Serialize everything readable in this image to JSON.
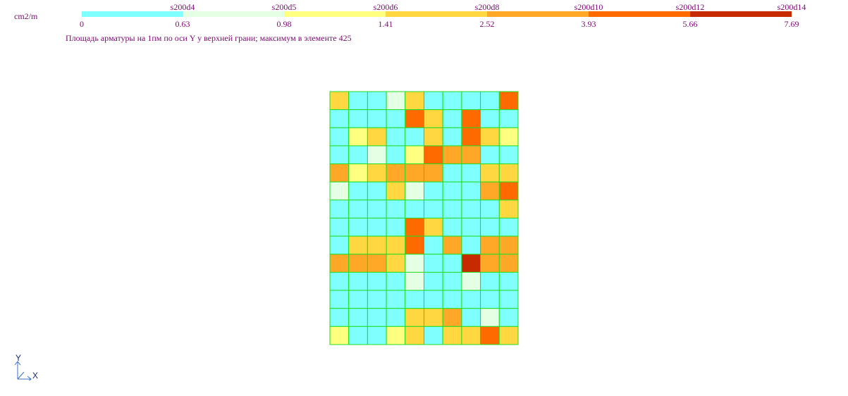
{
  "unit_label": "cm2/m",
  "caption": "Площадь арматуры на 1пм по оси Y у верхней грани; максимум в элементе 425",
  "legend": {
    "ticks": [
      "0",
      "0.63",
      "0.98",
      "1.41",
      "2.52",
      "3.93",
      "5.66",
      "7.69"
    ],
    "reinforcement_labels": [
      "s200d4",
      "s200d5",
      "s200d6",
      "s200d8",
      "s200d10",
      "s200d12",
      "s200d14"
    ],
    "colors": [
      "#80ffff",
      "#e4ffe4",
      "#ffff80",
      "#ffd740",
      "#ffa828",
      "#ff6a00",
      "#c82a00"
    ]
  },
  "mesh": {
    "columns": 10,
    "rows": 14,
    "grid_color": "#22dd22",
    "cell_levels": [
      [
        3,
        0,
        0,
        1,
        3,
        0,
        0,
        0,
        0,
        5
      ],
      [
        0,
        0,
        0,
        0,
        5,
        3,
        0,
        5,
        0,
        0
      ],
      [
        0,
        2,
        3,
        0,
        0,
        3,
        0,
        5,
        3,
        2
      ],
      [
        0,
        0,
        1,
        0,
        2,
        5,
        4,
        4,
        0,
        0
      ],
      [
        4,
        2,
        3,
        4,
        4,
        4,
        0,
        0,
        3,
        3
      ],
      [
        1,
        0,
        0,
        3,
        1,
        0,
        0,
        0,
        4,
        5
      ],
      [
        0,
        0,
        0,
        0,
        0,
        0,
        0,
        0,
        0,
        3
      ],
      [
        0,
        0,
        0,
        0,
        5,
        3,
        0,
        0,
        0,
        0
      ],
      [
        0,
        3,
        3,
        3,
        5,
        0,
        4,
        0,
        4,
        4
      ],
      [
        4,
        4,
        4,
        3,
        1,
        0,
        0,
        6,
        4,
        4
      ],
      [
        0,
        0,
        0,
        0,
        1,
        0,
        0,
        1,
        0,
        0
      ],
      [
        0,
        0,
        0,
        0,
        0,
        0,
        0,
        0,
        0,
        0
      ],
      [
        0,
        0,
        0,
        0,
        3,
        3,
        4,
        0,
        1,
        0
      ],
      [
        2,
        0,
        0,
        2,
        3,
        0,
        3,
        3,
        5,
        3
      ]
    ]
  },
  "axes": {
    "y_label": "Y",
    "x_label": "X"
  }
}
